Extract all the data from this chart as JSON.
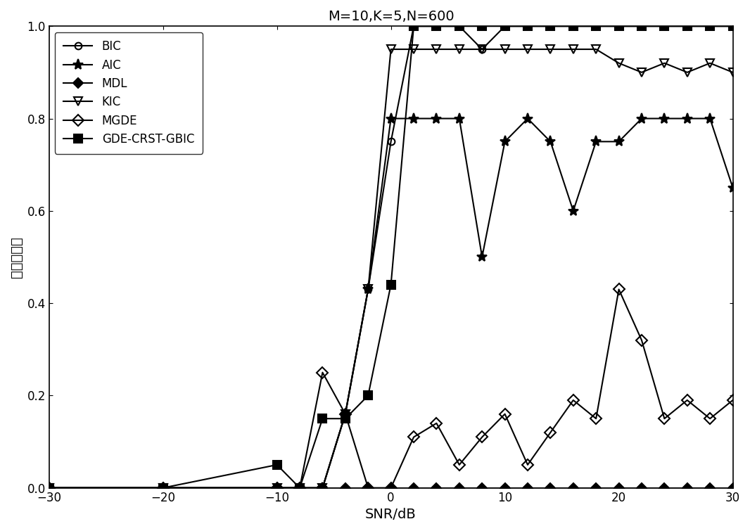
{
  "title": "M=10,K=5,N=600",
  "xlabel": "SNR/dB",
  "ylabel": "估计准确率",
  "xlim": [
    -30,
    30
  ],
  "ylim": [
    0,
    1.05
  ],
  "xticks": [
    -30,
    -20,
    -10,
    0,
    10,
    20,
    30
  ],
  "yticks": [
    0,
    0.2,
    0.4,
    0.6,
    0.8,
    1.0
  ],
  "background_color": "#ffffff",
  "line_color": "#000000",
  "series": [
    {
      "label": "BIC",
      "marker": "o",
      "markersize": 7,
      "fillstyle": "none",
      "x": [
        -30,
        -20,
        -10,
        -8,
        -6,
        -4,
        -2,
        0,
        2,
        4,
        6,
        8,
        10,
        12,
        14,
        16,
        18,
        20,
        22,
        24,
        26,
        28,
        30
      ],
      "y": [
        0,
        0,
        0,
        0,
        0,
        0.16,
        0.43,
        0.75,
        1.0,
        1.0,
        1.0,
        0.95,
        1.0,
        1.0,
        1.0,
        1.0,
        1.0,
        1.0,
        1.0,
        1.0,
        1.0,
        1.0,
        1.0
      ]
    },
    {
      "label": "AIC",
      "marker": "*",
      "markersize": 11,
      "fillstyle": "full",
      "x": [
        -30,
        -20,
        -10,
        -8,
        -6,
        -4,
        -2,
        0,
        2,
        4,
        6,
        8,
        10,
        12,
        14,
        16,
        18,
        20,
        22,
        24,
        26,
        28,
        30
      ],
      "y": [
        0,
        0,
        0,
        0,
        0,
        0.16,
        0.43,
        0.8,
        0.8,
        0.8,
        0.8,
        0.5,
        0.75,
        0.8,
        0.75,
        0.6,
        0.75,
        0.75,
        0.8,
        0.8,
        0.8,
        0.8,
        0.65
      ]
    },
    {
      "label": "MDL",
      "marker": "D",
      "markersize": 7,
      "fillstyle": "full",
      "x": [
        -30,
        -20,
        -10,
        -8,
        -6,
        -4,
        -2,
        0,
        2,
        4,
        6,
        8,
        10,
        12,
        14,
        16,
        18,
        20,
        22,
        24,
        26,
        28,
        30
      ],
      "y": [
        0,
        0,
        0,
        0,
        0,
        0,
        0,
        0,
        0,
        0,
        0,
        0,
        0,
        0,
        0,
        0,
        0,
        0,
        0,
        0,
        0,
        0,
        0
      ]
    },
    {
      "label": "KIC",
      "marker": "v",
      "markersize": 9,
      "fillstyle": "none",
      "x": [
        -30,
        -20,
        -10,
        -8,
        -6,
        -4,
        -2,
        0,
        2,
        4,
        6,
        8,
        10,
        12,
        14,
        16,
        18,
        20,
        22,
        24,
        26,
        28,
        30
      ],
      "y": [
        0,
        0,
        0,
        0,
        0,
        0.16,
        0.43,
        0.95,
        0.95,
        0.95,
        0.95,
        0.95,
        0.95,
        0.95,
        0.95,
        0.95,
        0.95,
        0.92,
        0.9,
        0.92,
        0.9,
        0.92,
        0.9
      ]
    },
    {
      "label": "MGDE",
      "marker": "D",
      "markersize": 8,
      "fillstyle": "none",
      "x": [
        -30,
        -20,
        -10,
        -8,
        -6,
        -4,
        -2,
        0,
        2,
        4,
        6,
        8,
        10,
        12,
        14,
        16,
        18,
        20,
        22,
        24,
        26,
        28,
        30
      ],
      "y": [
        0,
        0,
        0,
        0,
        0.25,
        0.16,
        0.0,
        0.0,
        0.11,
        0.14,
        0.05,
        0.11,
        0.16,
        0.05,
        0.12,
        0.19,
        0.15,
        0.43,
        0.32,
        0.15,
        0.19,
        0.15,
        0.19
      ]
    },
    {
      "label": "GDE-CRST-GBIC",
      "marker": "s",
      "markersize": 9,
      "fillstyle": "full",
      "x": [
        -30,
        -20,
        -10,
        -8,
        -6,
        -4,
        -2,
        0,
        2,
        4,
        6,
        8,
        10,
        12,
        14,
        16,
        18,
        20,
        22,
        24,
        26,
        28,
        30
      ],
      "y": [
        0,
        0,
        0.05,
        0.0,
        0.15,
        0.15,
        0.2,
        0.44,
        1.0,
        1.0,
        1.0,
        1.0,
        1.0,
        1.0,
        1.0,
        1.0,
        1.0,
        1.0,
        1.0,
        1.0,
        1.0,
        1.0,
        1.0
      ]
    }
  ]
}
